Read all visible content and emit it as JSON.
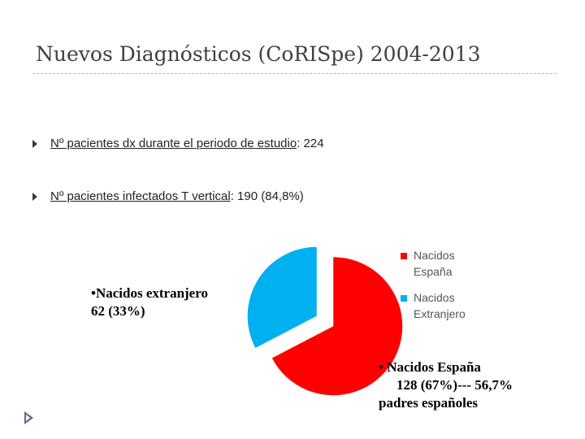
{
  "slide": {
    "title": "Nuevos Diagnósticos (CoRISpe) 2004-2013"
  },
  "bullets": [
    {
      "label": "Nº pacientes dx durante el periodo de estudio",
      "value": ":  224"
    },
    {
      "label": "Nº pacientes infectados T vertical",
      "value": ":   190 (84,8%)"
    }
  ],
  "annotations": {
    "extranjero_line1": "•Nacidos extranjero",
    "extranjero_line2": "62 (33%)",
    "espana_line1": "• Nacidos España",
    "espana_line2": "128 (67%)--- 56,7%",
    "espana_line3": "padres españoles"
  },
  "chart_data": {
    "type": "pie",
    "title": "",
    "categories": [
      "Nacidos España",
      "Nacidos Extranjero"
    ],
    "values": [
      128,
      62
    ],
    "colors": [
      "#ff0000",
      "#00b0f0"
    ],
    "legend": [
      {
        "line1": "Nacidos",
        "line2": "España",
        "color": "#ff0000"
      },
      {
        "line1": "Nacidos",
        "line2": "Extranjero",
        "color": "#00b0f0"
      }
    ],
    "legend_position": "right"
  }
}
